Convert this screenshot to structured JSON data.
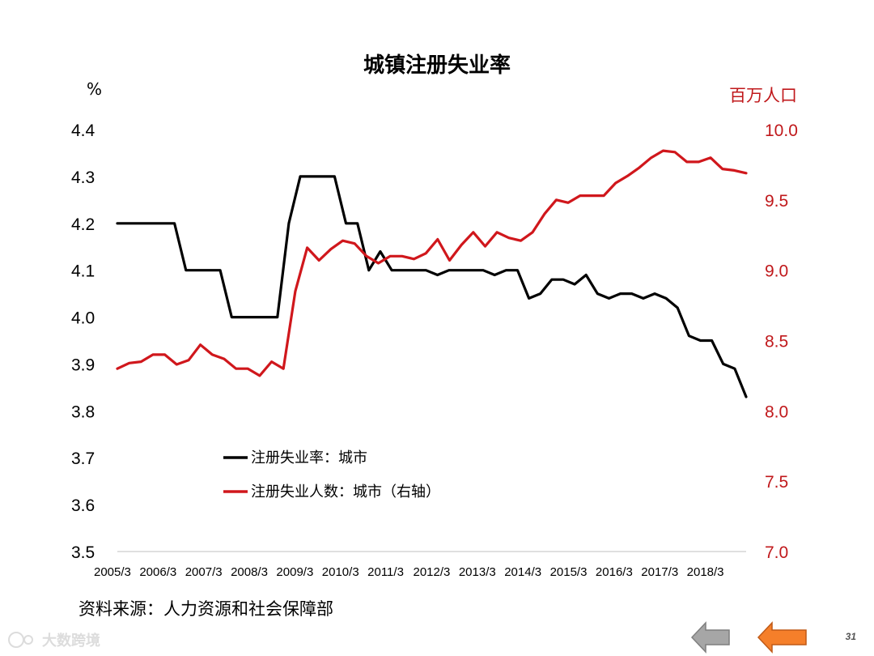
{
  "chart_data": {
    "type": "line",
    "title": "城镇注册失业率",
    "left_axis": {
      "unit": "%",
      "ylim": [
        3.5,
        4.4
      ],
      "ticks": [
        "4.4",
        "4.3",
        "4.2",
        "4.1",
        "4.0",
        "3.9",
        "3.8",
        "3.7",
        "3.6",
        "3.5"
      ]
    },
    "right_axis": {
      "unit": "百万人口",
      "ylim": [
        7.0,
        10.0
      ],
      "ticks": [
        "10.0",
        "9.5",
        "9.0",
        "8.5",
        "8.0",
        "7.5",
        "7.0"
      ]
    },
    "x_tick_labels": [
      "2005/3",
      "2006/3",
      "2007/3",
      "2008/3",
      "2009/3",
      "2010/3",
      "2011/3",
      "2012/3",
      "2013/3",
      "2014/3",
      "2015/3",
      "2016/3",
      "2017/3",
      "2018/3"
    ],
    "legend_position": "lower-left",
    "series": [
      {
        "name": "注册失业率：城市",
        "axis": "left",
        "color": "#000000",
        "values": [
          4.2,
          4.2,
          4.2,
          4.2,
          4.2,
          4.2,
          4.1,
          4.1,
          4.1,
          4.1,
          4.0,
          4.0,
          4.0,
          4.0,
          4.0,
          4.2,
          4.3,
          4.3,
          4.3,
          4.3,
          4.2,
          4.2,
          4.1,
          4.14,
          4.1,
          4.1,
          4.1,
          4.1,
          4.09,
          4.1,
          4.1,
          4.1,
          4.1,
          4.09,
          4.1,
          4.1,
          4.04,
          4.05,
          4.08,
          4.08,
          4.07,
          4.09,
          4.05,
          4.04,
          4.05,
          4.05,
          4.04,
          4.05,
          4.04,
          4.02,
          3.96,
          3.95,
          3.95,
          3.9,
          3.89,
          3.83
        ]
      },
      {
        "name": "注册失业人数：城市（右轴）",
        "axis": "right",
        "color": "#d0171c",
        "values": [
          8.3,
          8.34,
          8.35,
          8.4,
          8.4,
          8.33,
          8.36,
          8.47,
          8.4,
          8.37,
          8.3,
          8.3,
          8.25,
          8.35,
          8.3,
          8.85,
          9.16,
          9.07,
          9.15,
          9.21,
          9.19,
          9.1,
          9.05,
          9.1,
          9.1,
          9.08,
          9.12,
          9.22,
          9.07,
          9.18,
          9.27,
          9.17,
          9.27,
          9.23,
          9.21,
          9.27,
          9.4,
          9.5,
          9.48,
          9.53,
          9.53,
          9.53,
          9.62,
          9.67,
          9.73,
          9.8,
          9.85,
          9.84,
          9.77,
          9.77,
          9.8,
          9.72,
          9.71,
          9.69
        ]
      }
    ]
  },
  "source": {
    "label": "资料来源：人力资源和社会保障部"
  },
  "footer": {
    "watermark_text": "大数跨境",
    "page_number": "31",
    "prev_arrow_color": "#a6a6a6",
    "next_arrow_color": "#f57f2a"
  }
}
